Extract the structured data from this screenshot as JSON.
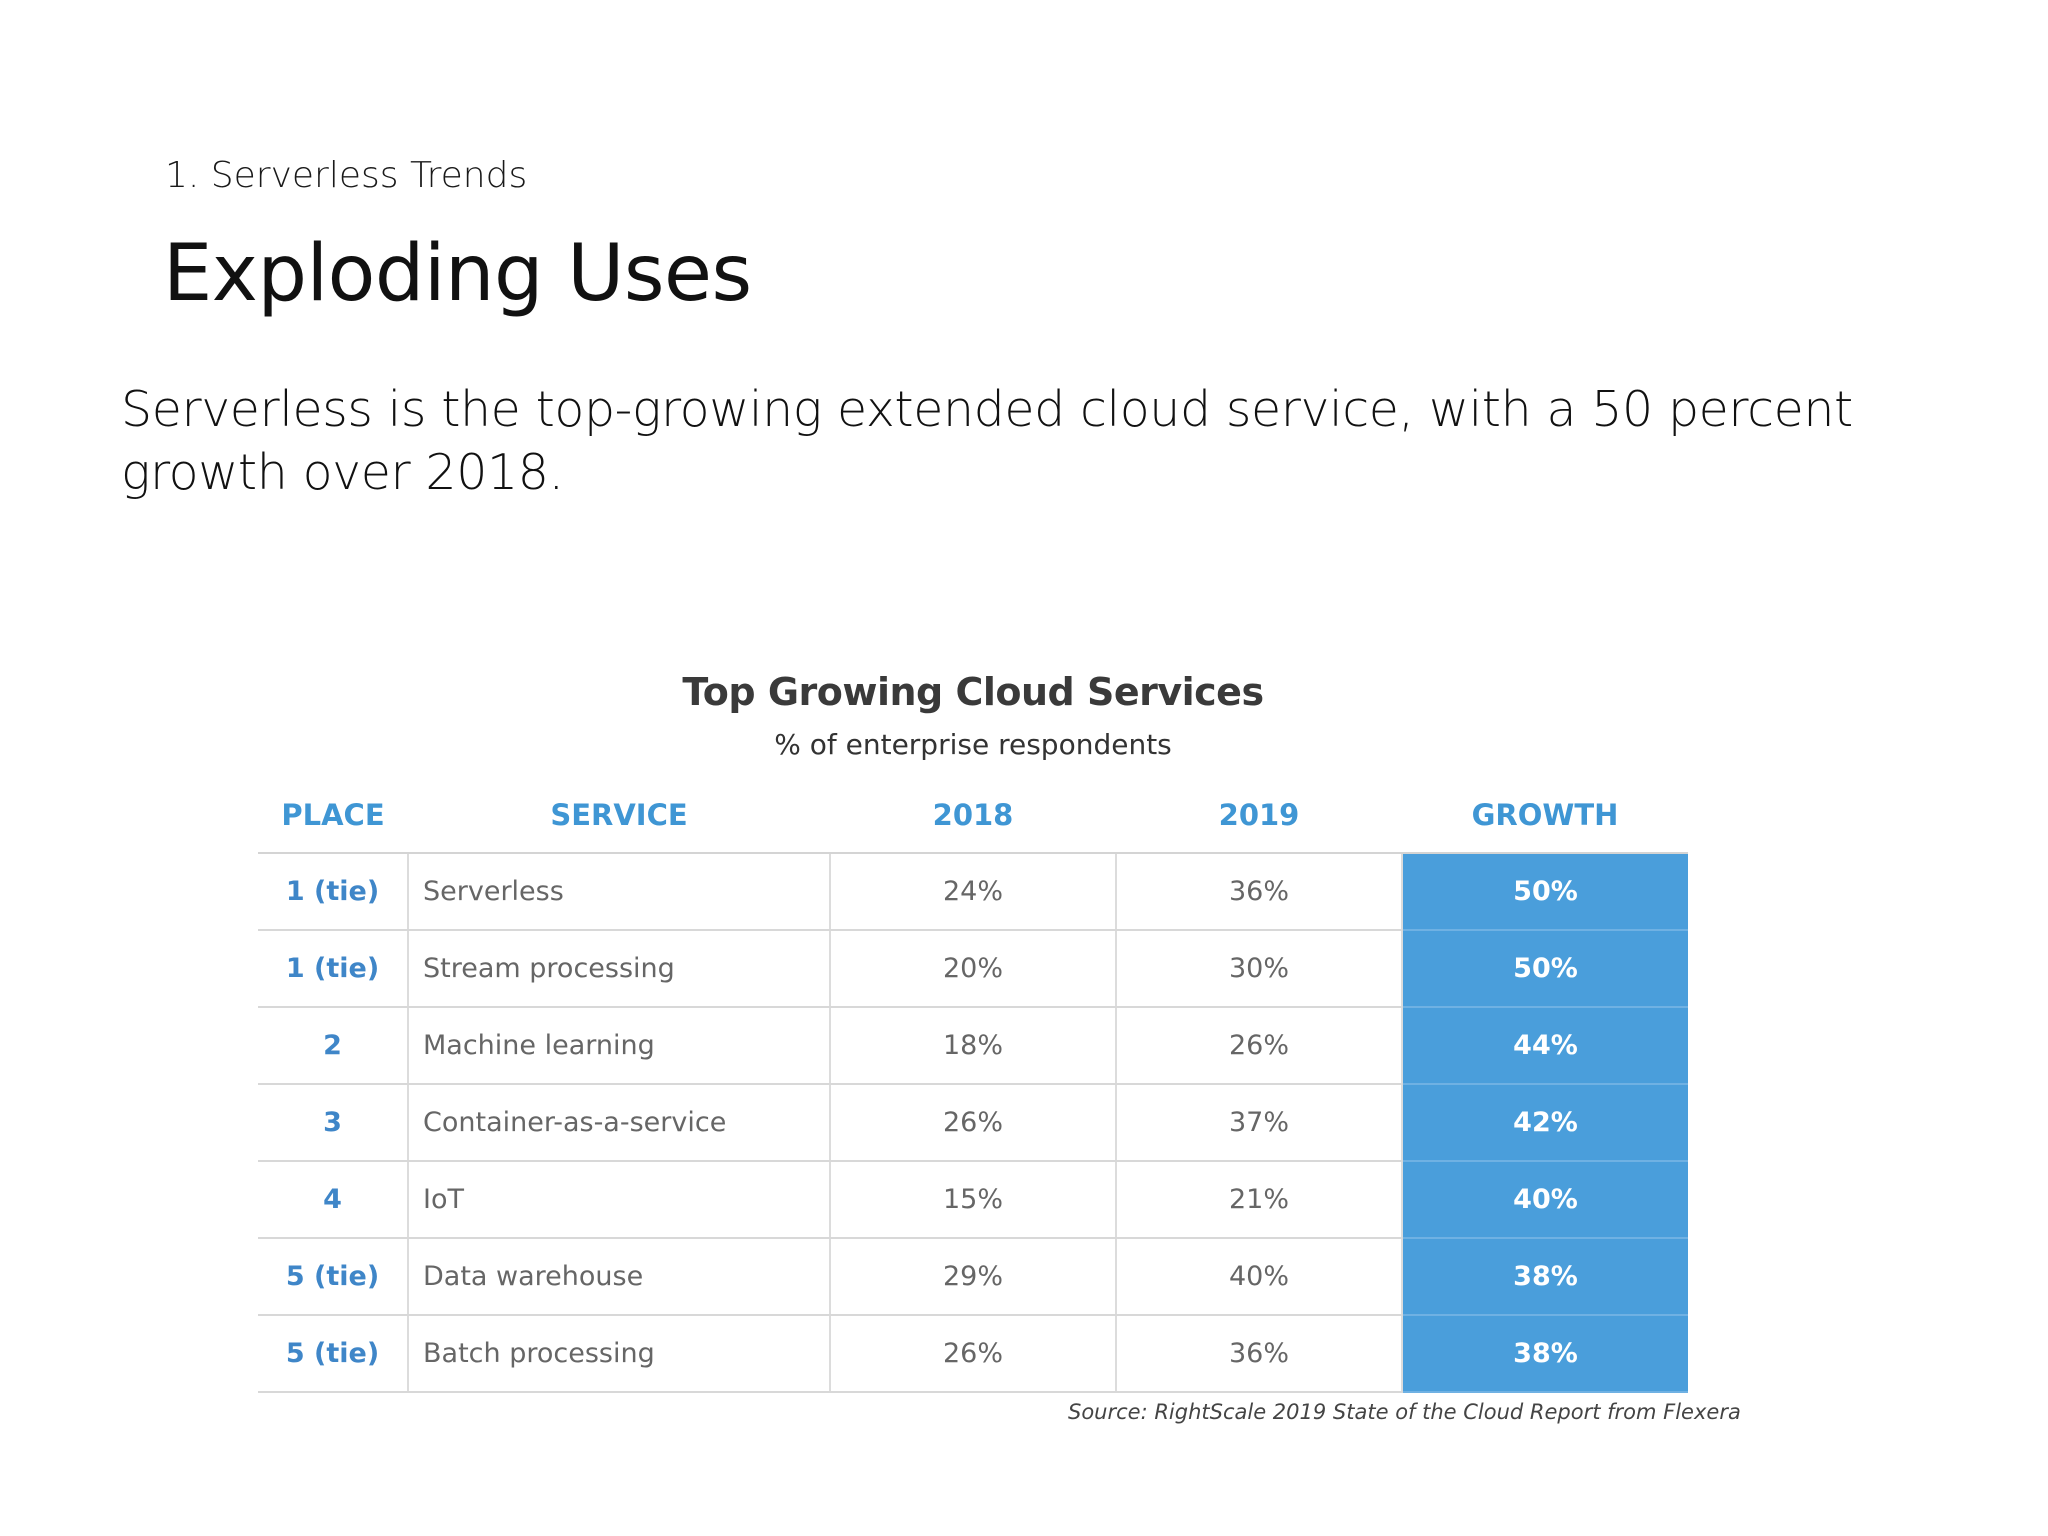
{
  "slide": {
    "section_label": "1. Serverless Trends",
    "title": "Exploding Uses",
    "body": "Serverless is the top-growing extended cloud service, with a 50 percent growth over 2018."
  },
  "figure": {
    "title": "Top Growing Cloud Services",
    "subtitle": "% of enterprise respondents",
    "columns": [
      "PLACE",
      "SERVICE",
      "2018",
      "2019",
      "GROWTH"
    ],
    "rows": [
      {
        "place": "1 (tie)",
        "service": "Serverless",
        "y2018": "24%",
        "y2019": "36%",
        "growth": "50%"
      },
      {
        "place": "1 (tie)",
        "service": "Stream processing",
        "y2018": "20%",
        "y2019": "30%",
        "growth": "50%"
      },
      {
        "place": "2",
        "service": "Machine learning",
        "y2018": "18%",
        "y2019": "26%",
        "growth": "44%"
      },
      {
        "place": "3",
        "service": "Container-as-a-service",
        "y2018": "26%",
        "y2019": "37%",
        "growth": "42%"
      },
      {
        "place": "4",
        "service": "IoT",
        "y2018": "15%",
        "y2019": "21%",
        "growth": "40%"
      },
      {
        "place": "5 (tie)",
        "service": "Data warehouse",
        "y2018": "29%",
        "y2019": "40%",
        "growth": "38%"
      },
      {
        "place": "5 (tie)",
        "service": "Batch processing",
        "y2018": "26%",
        "y2019": "36%",
        "growth": "38%"
      }
    ],
    "source": "Source: RightScale 2019 State of the Cloud Report from Flexera",
    "colors": {
      "header_text": "#3f96d4",
      "growth_fill": "#4a9edb",
      "growth_text": "#ffffff"
    }
  }
}
